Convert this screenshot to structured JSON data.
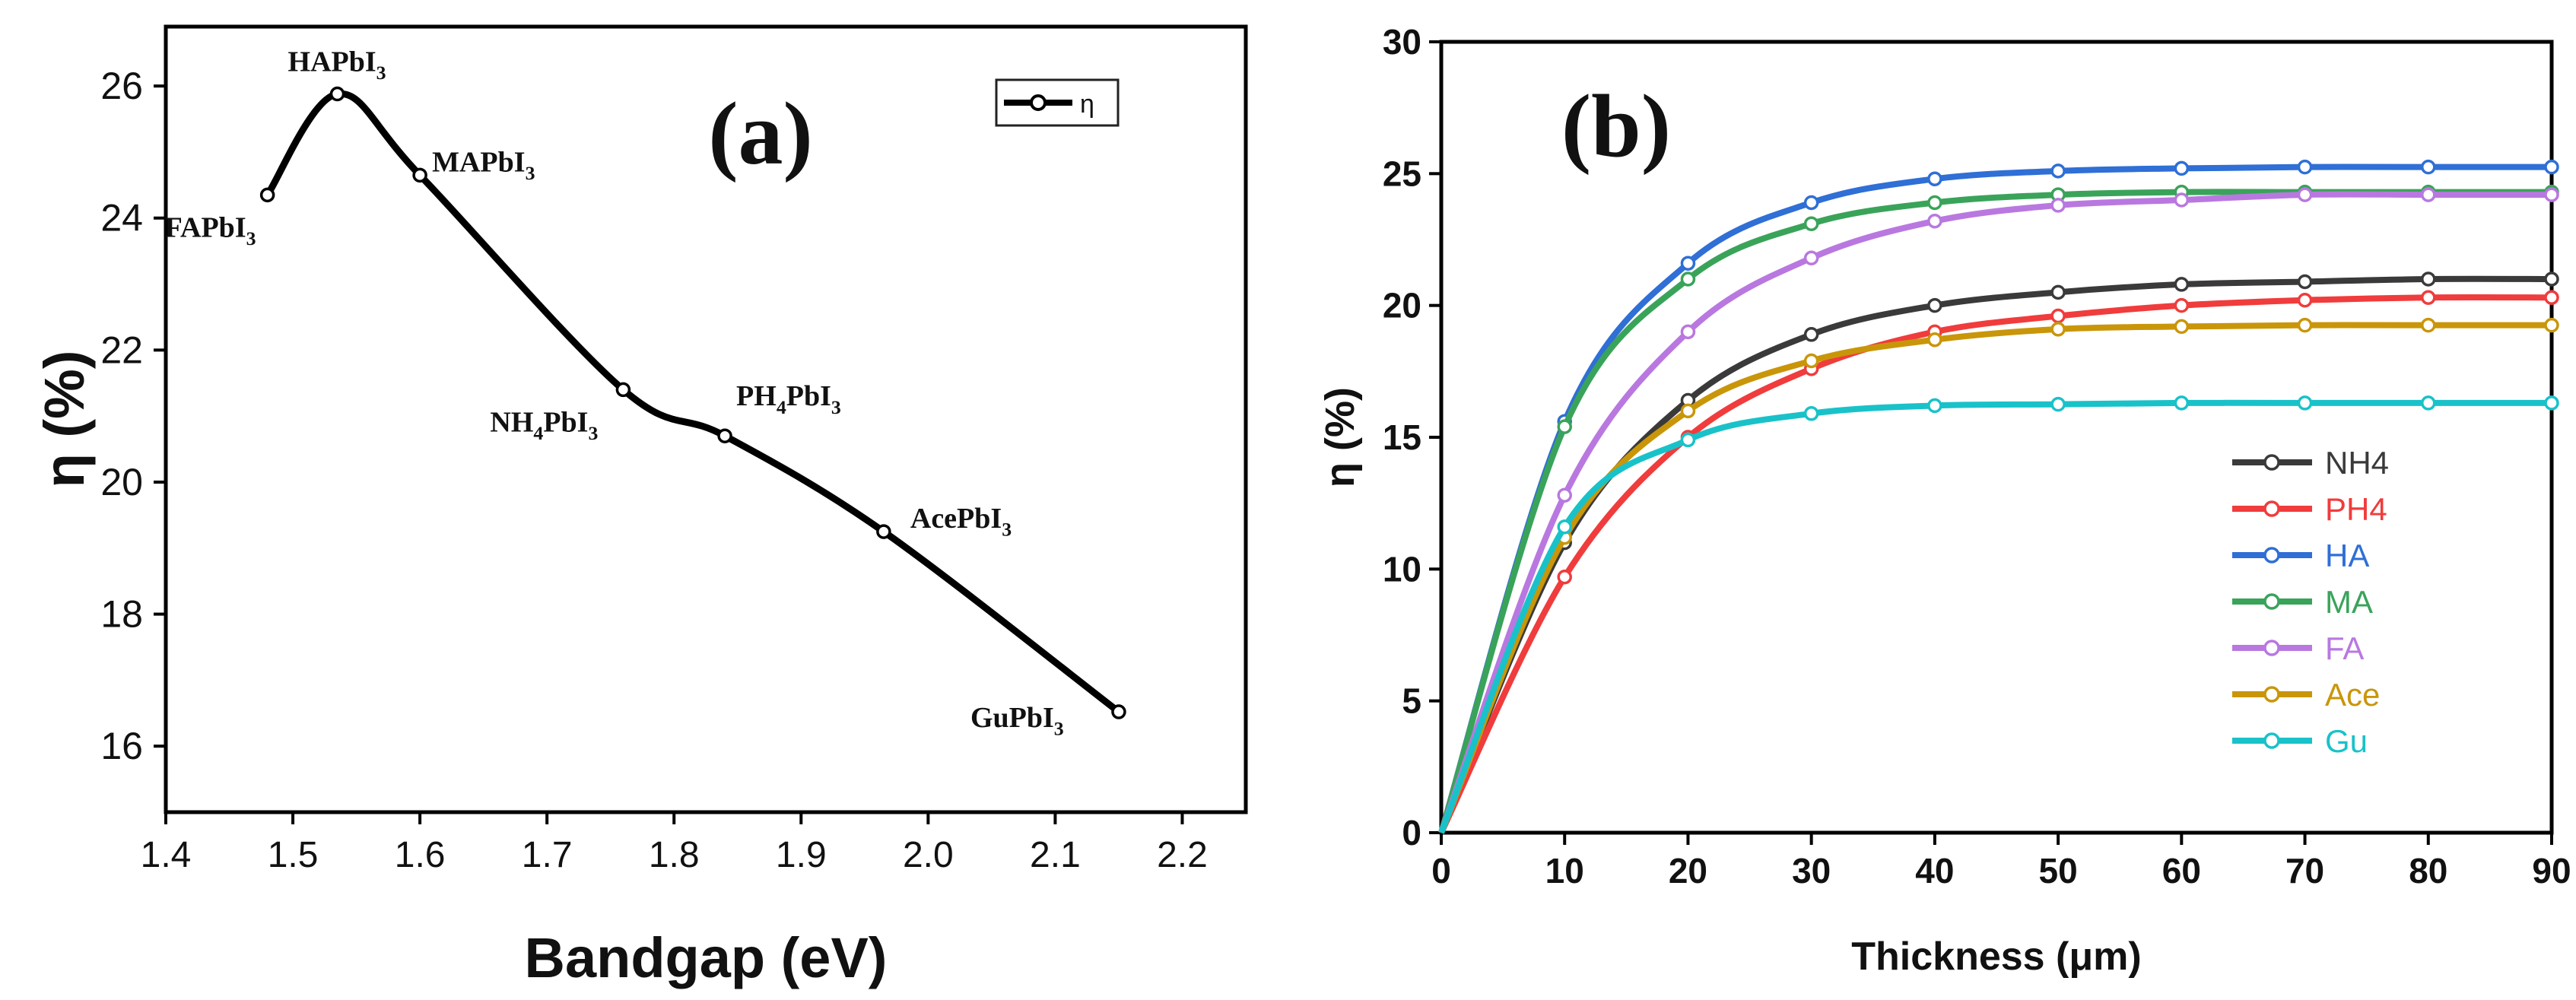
{
  "chart_data": [
    {
      "type": "line",
      "panel_label": "(a)",
      "xlabel": "Bandgap (eV)",
      "ylabel": "η (%)",
      "xlim": [
        1.4,
        2.25
      ],
      "ylim": [
        15,
        26.9
      ],
      "xticks": [
        "1.4",
        "1.5",
        "1.6",
        "1.7",
        "1.8",
        "1.9",
        "2.0",
        "2.1",
        "2.2"
      ],
      "yticks": [
        "16",
        "18",
        "20",
        "22",
        "24",
        "26"
      ],
      "legend": {
        "entries": [
          "η"
        ],
        "placement": "top-right"
      },
      "series": [
        {
          "name": "η",
          "color": "#000000",
          "points": [
            {
              "label": "FAPbI3",
              "x": 1.48,
              "y": 24.35
            },
            {
              "label": "HAPbI3",
              "x": 1.535,
              "y": 25.88
            },
            {
              "label": "MAPbI3",
              "x": 1.6,
              "y": 24.65
            },
            {
              "label": "NH4PbI3",
              "x": 1.76,
              "y": 21.4
            },
            {
              "label": "PH4PbI3",
              "x": 1.84,
              "y": 20.7
            },
            {
              "label": "AcePbI3",
              "x": 1.965,
              "y": 19.25
            },
            {
              "label": "GuPbI3",
              "x": 2.15,
              "y": 16.52
            }
          ]
        }
      ],
      "grid": false
    },
    {
      "type": "line",
      "panel_label": "(b)",
      "xlabel": "Thickness (μm)",
      "ylabel": "η (%)",
      "xlim": [
        0,
        90
      ],
      "ylim": [
        0,
        30
      ],
      "xticks": [
        "0",
        "10",
        "20",
        "30",
        "40",
        "50",
        "60",
        "70",
        "80",
        "90"
      ],
      "yticks": [
        "0",
        "5",
        "10",
        "15",
        "20",
        "25",
        "30"
      ],
      "legend": {
        "placement": "bottom-right"
      },
      "x": [
        0,
        10,
        20,
        30,
        40,
        50,
        60,
        70,
        80,
        90
      ],
      "series": [
        {
          "name": "NH4",
          "color": "#3a3a3a",
          "values": [
            0,
            11.0,
            16.4,
            18.9,
            20.0,
            20.5,
            20.8,
            20.9,
            21.0,
            21.0
          ]
        },
        {
          "name": "PH4",
          "color": "#f03c3c",
          "values": [
            0,
            9.7,
            15.0,
            17.6,
            19.0,
            19.6,
            20.0,
            20.2,
            20.3,
            20.3
          ]
        },
        {
          "name": "HA",
          "color": "#2f6fd6",
          "values": [
            0,
            15.6,
            21.6,
            23.9,
            24.8,
            25.1,
            25.2,
            25.25,
            25.25,
            25.25
          ]
        },
        {
          "name": "MA",
          "color": "#3aa35a",
          "values": [
            0,
            15.4,
            21.0,
            23.1,
            23.9,
            24.2,
            24.3,
            24.3,
            24.3,
            24.3
          ]
        },
        {
          "name": "FA",
          "color": "#b978e0",
          "values": [
            0,
            12.8,
            19.0,
            21.8,
            23.2,
            23.8,
            24.0,
            24.2,
            24.2,
            24.2
          ]
        },
        {
          "name": "Ace",
          "color": "#c9960a",
          "values": [
            0,
            11.2,
            16.0,
            17.9,
            18.7,
            19.1,
            19.2,
            19.25,
            19.25,
            19.25
          ]
        },
        {
          "name": "Gu",
          "color": "#19c2c9",
          "values": [
            0,
            11.6,
            14.9,
            15.9,
            16.2,
            16.25,
            16.3,
            16.3,
            16.3,
            16.3
          ]
        }
      ],
      "grid": false
    }
  ]
}
